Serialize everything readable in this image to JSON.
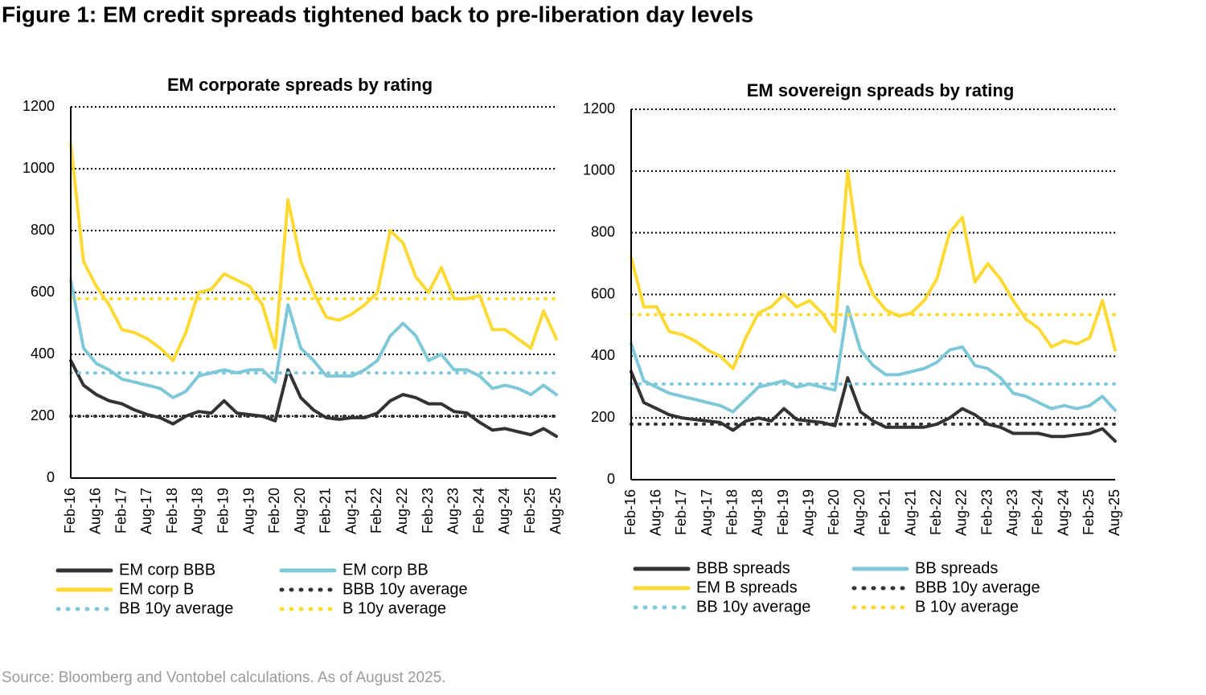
{
  "title": "Figure 1: EM credit spreads tightened back to pre-liberation day levels",
  "source": "Source: Bloomberg and Vontobel calculations. As of August 2025.",
  "chart_data": [
    {
      "type": "line",
      "title": "EM corporate spreads by rating",
      "categories": [
        "Feb-16",
        null,
        "Aug-16",
        null,
        "Feb-17",
        null,
        "Aug-17",
        null,
        "Feb-18",
        null,
        "Aug-18",
        null,
        "Feb-19",
        null,
        "Aug-19",
        null,
        "Feb-20",
        null,
        "Aug-20",
        null,
        "Feb-21",
        null,
        "Aug-21",
        null,
        "Feb-22",
        null,
        "Aug-22",
        null,
        "Feb-23",
        null,
        "Aug-23",
        null,
        "Feb-24",
        null,
        "Aug-24",
        null,
        "Feb-25",
        null,
        "Aug-25"
      ],
      "ylim": [
        0,
        1200
      ],
      "yticks": [
        0,
        200,
        400,
        600,
        800,
        1000,
        1200
      ],
      "grid": true,
      "series": [
        {
          "name": "EM corp BBB",
          "color": "#333333",
          "dash": "solid",
          "values": [
            380,
            300,
            270,
            250,
            240,
            220,
            205,
            195,
            175,
            200,
            215,
            210,
            250,
            210,
            205,
            200,
            185,
            350,
            260,
            220,
            195,
            190,
            195,
            195,
            210,
            250,
            270,
            260,
            240,
            240,
            215,
            210,
            180,
            155,
            160,
            150,
            140,
            160,
            135
          ]
        },
        {
          "name": "EM corp BB",
          "color": "#7ec8d8",
          "dash": "solid",
          "values": [
            640,
            420,
            370,
            350,
            320,
            310,
            300,
            290,
            260,
            280,
            330,
            340,
            350,
            340,
            350,
            350,
            310,
            560,
            420,
            380,
            330,
            330,
            330,
            350,
            380,
            460,
            500,
            460,
            380,
            400,
            350,
            350,
            330,
            290,
            300,
            290,
            270,
            300,
            270
          ]
        },
        {
          "name": "EM corp B",
          "color": "#fcd933",
          "dash": "solid",
          "values": [
            1080,
            700,
            620,
            560,
            480,
            470,
            450,
            420,
            380,
            470,
            600,
            610,
            660,
            640,
            620,
            560,
            420,
            900,
            700,
            600,
            520,
            510,
            530,
            560,
            600,
            800,
            760,
            650,
            600,
            680,
            580,
            580,
            590,
            480,
            480,
            450,
            420,
            540,
            450
          ]
        },
        {
          "name": "BBB 10y average",
          "color": "#333333",
          "dash": "dotted",
          "values": [
            200,
            200,
            200,
            200,
            200,
            200,
            200,
            200,
            200,
            200,
            200,
            200,
            200,
            200,
            200,
            200,
            200,
            200,
            200,
            200,
            200,
            200,
            200,
            200,
            200,
            200,
            200,
            200,
            200,
            200,
            200,
            200,
            200,
            200,
            200,
            200,
            200,
            200,
            200
          ]
        },
        {
          "name": "BB 10y average",
          "color": "#7ec8d8",
          "dash": "dotted",
          "values": [
            340,
            340,
            340,
            340,
            340,
            340,
            340,
            340,
            340,
            340,
            340,
            340,
            340,
            340,
            340,
            340,
            340,
            340,
            340,
            340,
            340,
            340,
            340,
            340,
            340,
            340,
            340,
            340,
            340,
            340,
            340,
            340,
            340,
            340,
            340,
            340,
            340,
            340,
            340
          ]
        },
        {
          "name": "B 10y average",
          "color": "#fcd933",
          "dash": "dotted",
          "values": [
            580,
            580,
            580,
            580,
            580,
            580,
            580,
            580,
            580,
            580,
            580,
            580,
            580,
            580,
            580,
            580,
            580,
            580,
            580,
            580,
            580,
            580,
            580,
            580,
            580,
            580,
            580,
            580,
            580,
            580,
            580,
            580,
            580,
            580,
            580,
            580,
            580,
            580,
            580
          ]
        }
      ]
    },
    {
      "type": "line",
      "title": "EM sovereign spreads by rating",
      "categories": [
        "Feb-16",
        null,
        "Aug-16",
        null,
        "Feb-17",
        null,
        "Aug-17",
        null,
        "Feb-18",
        null,
        "Aug-18",
        null,
        "Feb-19",
        null,
        "Aug-19",
        null,
        "Feb-20",
        null,
        "Aug-20",
        null,
        "Feb-21",
        null,
        "Aug-21",
        null,
        "Feb-22",
        null,
        "Aug-22",
        null,
        "Feb-23",
        null,
        "Aug-23",
        null,
        "Feb-24",
        null,
        "Aug-24",
        null,
        "Feb-25",
        null,
        "Aug-25"
      ],
      "ylim": [
        0,
        1200
      ],
      "yticks": [
        0,
        200,
        400,
        600,
        800,
        1000,
        1200
      ],
      "grid": true,
      "series": [
        {
          "name": "BBB spreads",
          "color": "#333333",
          "dash": "solid",
          "values": [
            350,
            250,
            230,
            210,
            200,
            195,
            190,
            185,
            160,
            190,
            200,
            190,
            230,
            195,
            190,
            185,
            175,
            330,
            220,
            190,
            170,
            170,
            170,
            170,
            180,
            200,
            230,
            210,
            180,
            170,
            150,
            150,
            150,
            140,
            140,
            145,
            150,
            165,
            125
          ]
        },
        {
          "name": "BB spreads",
          "color": "#7ec8d8",
          "dash": "solid",
          "values": [
            440,
            320,
            300,
            280,
            270,
            260,
            250,
            240,
            220,
            260,
            300,
            310,
            320,
            300,
            310,
            300,
            290,
            560,
            420,
            370,
            340,
            340,
            350,
            360,
            380,
            420,
            430,
            370,
            360,
            330,
            280,
            270,
            250,
            230,
            240,
            230,
            240,
            270,
            225
          ]
        },
        {
          "name": "EM B spreads",
          "color": "#fcd933",
          "dash": "solid",
          "values": [
            720,
            560,
            560,
            480,
            470,
            450,
            420,
            400,
            360,
            460,
            540,
            560,
            600,
            560,
            580,
            540,
            480,
            1000,
            700,
            600,
            550,
            530,
            540,
            580,
            650,
            800,
            850,
            640,
            700,
            650,
            580,
            520,
            490,
            430,
            450,
            440,
            460,
            580,
            420
          ]
        },
        {
          "name": "BBB 10y average",
          "color": "#333333",
          "dash": "dotted",
          "values": [
            180,
            180,
            180,
            180,
            180,
            180,
            180,
            180,
            180,
            180,
            180,
            180,
            180,
            180,
            180,
            180,
            180,
            180,
            180,
            180,
            180,
            180,
            180,
            180,
            180,
            180,
            180,
            180,
            180,
            180,
            180,
            180,
            180,
            180,
            180,
            180,
            180,
            180,
            180
          ]
        },
        {
          "name": "BB 10y average",
          "color": "#7ec8d8",
          "dash": "dotted",
          "values": [
            310,
            310,
            310,
            310,
            310,
            310,
            310,
            310,
            310,
            310,
            310,
            310,
            310,
            310,
            310,
            310,
            310,
            310,
            310,
            310,
            310,
            310,
            310,
            310,
            310,
            310,
            310,
            310,
            310,
            310,
            310,
            310,
            310,
            310,
            310,
            310,
            310,
            310,
            310
          ]
        },
        {
          "name": "B 10y average",
          "color": "#fcd933",
          "dash": "dotted",
          "values": [
            535,
            535,
            535,
            535,
            535,
            535,
            535,
            535,
            535,
            535,
            535,
            535,
            535,
            535,
            535,
            535,
            535,
            535,
            535,
            535,
            535,
            535,
            535,
            535,
            535,
            535,
            535,
            535,
            535,
            535,
            535,
            535,
            535,
            535,
            535,
            535,
            535,
            535,
            535
          ]
        }
      ]
    }
  ]
}
